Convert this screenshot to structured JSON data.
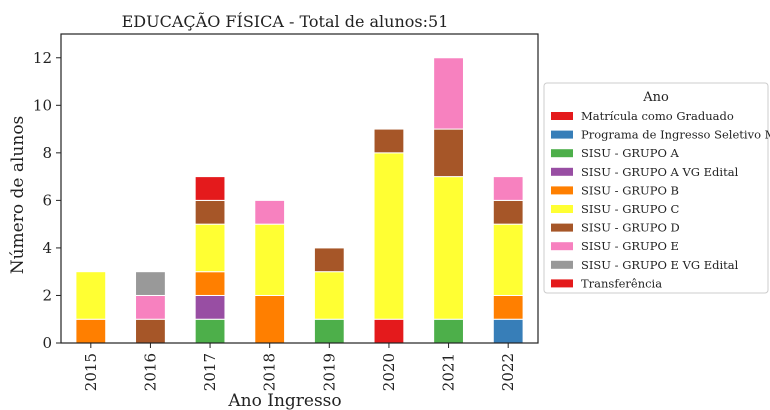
{
  "chart_data": {
    "type": "bar",
    "stacked": true,
    "title": "EDUCAÇÃO FÍSICA - Total de alunos:51",
    "xlabel": "Ano Ingresso",
    "ylabel": "Número de alunos",
    "ylim": [
      0,
      13
    ],
    "yticks": [
      0,
      2,
      4,
      6,
      8,
      10,
      12
    ],
    "grid": false,
    "legend": {
      "title": "Ano",
      "placement": "right"
    },
    "categories": [
      "2015",
      "2016",
      "2017",
      "2018",
      "2019",
      "2020",
      "2021",
      "2022"
    ],
    "series": [
      {
        "name": "Matrícula como Graduado",
        "color": "#e41a1c",
        "values": [
          0,
          0,
          0,
          0,
          0,
          1,
          0,
          0
        ]
      },
      {
        "name": "Programa de Ingresso Seletivo Misto",
        "color": "#377eb8",
        "values": [
          0,
          0,
          0,
          0,
          0,
          0,
          0,
          1
        ]
      },
      {
        "name": "SISU - GRUPO A",
        "color": "#4daf4a",
        "values": [
          0,
          0,
          1,
          0,
          1,
          0,
          1,
          0
        ]
      },
      {
        "name": "SISU - GRUPO A VG Edital",
        "color": "#984ea3",
        "values": [
          0,
          0,
          1,
          0,
          0,
          0,
          0,
          0
        ]
      },
      {
        "name": "SISU - GRUPO B",
        "color": "#ff7f00",
        "values": [
          1,
          0,
          1,
          2,
          0,
          0,
          0,
          1
        ]
      },
      {
        "name": "SISU - GRUPO C",
        "color": "#ffff33",
        "values": [
          2,
          0,
          2,
          3,
          2,
          7,
          6,
          3
        ]
      },
      {
        "name": "SISU - GRUPO D",
        "color": "#a65628",
        "values": [
          0,
          1,
          1,
          0,
          1,
          1,
          2,
          1
        ]
      },
      {
        "name": "SISU - GRUPO E",
        "color": "#f781bf",
        "values": [
          0,
          1,
          0,
          1,
          0,
          0,
          3,
          1
        ]
      },
      {
        "name": "SISU - GRUPO E VG Edital",
        "color": "#999999",
        "values": [
          0,
          1,
          0,
          0,
          0,
          0,
          0,
          0
        ]
      },
      {
        "name": "Transferência",
        "color": "#e41a1c",
        "values": [
          0,
          0,
          1,
          0,
          0,
          0,
          0,
          0
        ]
      }
    ]
  }
}
